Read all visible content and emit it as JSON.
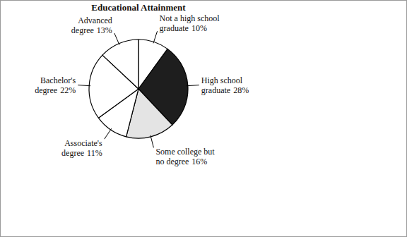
{
  "chart_data": {
    "type": "pie",
    "title": "Educational Attainment",
    "categories": [
      "Not a high school graduate",
      "High school graduate",
      "Some college but no degree",
      "Associate's degree",
      "Bachelor's degree",
      "Advanced degree"
    ],
    "values": [
      10,
      28,
      16,
      11,
      22,
      13
    ],
    "value_labels": [
      "10%",
      "28%",
      "16%",
      "11%",
      "22%",
      "13%"
    ],
    "data_labels": true,
    "colors": [
      "#ffffff",
      "#1e1e1e",
      "#e4e4e4",
      "#ffffff",
      "#ffffff",
      "#ffffff"
    ]
  }
}
